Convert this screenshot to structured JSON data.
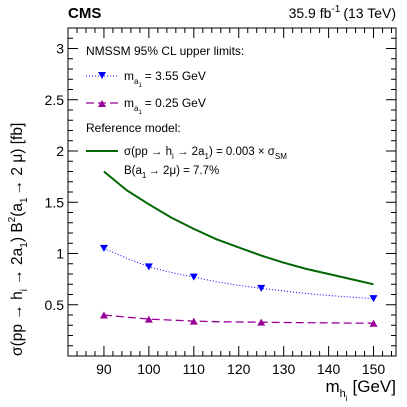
{
  "chart_data": {
    "type": "line",
    "experiment": "CMS",
    "lumi_label": "35.9 fb",
    "lumi_sup": "-1",
    "energy_label": "(13 TeV)",
    "ylabel": {
      "parts": [
        "σ(pp → h",
        "i",
        " → 2a",
        "1",
        ") B",
        "2",
        "(a",
        "1",
        "→ 2 μ) [fb]"
      ]
    },
    "xlabel": {
      "main": "m",
      "sub": "h",
      "subsub": "i",
      "unit": "[GeV]"
    },
    "xlim": [
      82,
      155
    ],
    "ylim": [
      0,
      3.2
    ],
    "xticks": [
      90,
      100,
      110,
      120,
      130,
      140,
      150
    ],
    "yticks": [
      0.5,
      1,
      1.5,
      2,
      2.5,
      3
    ],
    "ytick_labels": [
      "0.5",
      "1",
      "1.5",
      "2",
      "2.5",
      "3"
    ],
    "legend": {
      "header": "NMSSM 95% CL upper limits:",
      "entry1_prefix": "m",
      "entry1_sub": "a",
      "entry1_subsub": "1",
      "entry1_value": "= 3.55 GeV",
      "entry2_prefix": "m",
      "entry2_sub": "a",
      "entry2_subsub": "1",
      "entry2_value": "= 0.25 GeV",
      "ref_header": "Reference model:",
      "ref_line1_a": "σ(pp → h",
      "ref_line1_b": "i",
      "ref_line1_c": " → 2a",
      "ref_line1_d": "1",
      "ref_line1_e": ") = 0.003 × σ",
      "ref_line1_f": "SM",
      "ref_line2_a": "B(a",
      "ref_line2_b": "1",
      "ref_line2_c": "→ 2μ) = 7.7%"
    },
    "series": [
      {
        "key": "ma355",
        "color": "#0000ff",
        "style": "dotted",
        "marker": "triangle-down",
        "x": [
          90,
          100,
          110,
          125,
          150
        ],
        "y": [
          1.05,
          0.87,
          0.77,
          0.66,
          0.56
        ],
        "curve_x": [
          90,
          95,
          100,
          105,
          110,
          115,
          120,
          125,
          130,
          135,
          140,
          145,
          150
        ],
        "curve_y": [
          1.05,
          0.955,
          0.87,
          0.815,
          0.77,
          0.725,
          0.69,
          0.66,
          0.635,
          0.61,
          0.59,
          0.575,
          0.56
        ]
      },
      {
        "key": "ma025",
        "color": "#990099",
        "style": "dashed",
        "marker": "triangle-up",
        "x": [
          90,
          100,
          110,
          125,
          150
        ],
        "y": [
          0.4,
          0.36,
          0.34,
          0.33,
          0.32
        ],
        "curve_x": [
          90,
          95,
          100,
          105,
          110,
          115,
          120,
          125,
          130,
          135,
          140,
          145,
          150
        ],
        "curve_y": [
          0.4,
          0.38,
          0.36,
          0.35,
          0.34,
          0.335,
          0.332,
          0.33,
          0.327,
          0.325,
          0.323,
          0.321,
          0.32
        ]
      },
      {
        "key": "reference",
        "color": "#006600",
        "style": "solid",
        "marker": "none",
        "x": [
          90,
          95,
          100,
          105,
          110,
          115,
          120,
          125,
          130,
          135,
          140,
          145,
          150
        ],
        "y": [
          1.8,
          1.62,
          1.48,
          1.35,
          1.24,
          1.14,
          1.06,
          0.98,
          0.91,
          0.85,
          0.8,
          0.75,
          0.7
        ]
      }
    ]
  }
}
